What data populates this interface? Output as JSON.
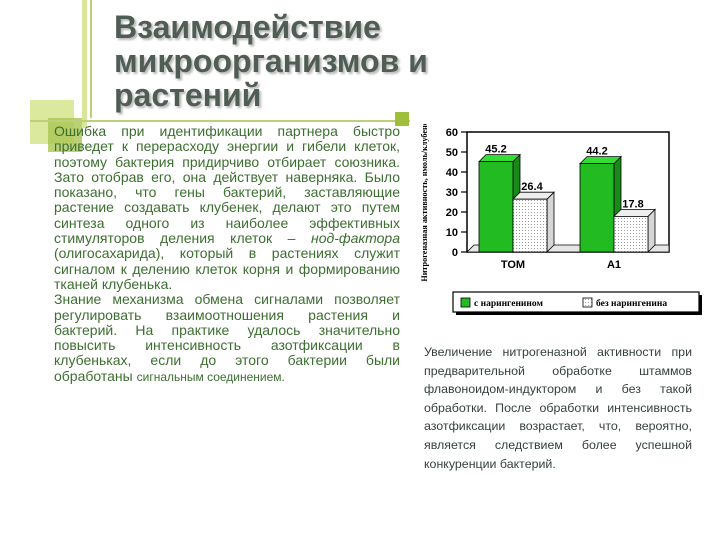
{
  "title": [
    "Взаимодействие",
    "микроорганизмов и",
    "растений"
  ],
  "paragraph1": {
    "part1": "Ошибка при идентификации партнера быстро приведет к перерасходу энергии и гибели клеток, поэтому бактерия придирчиво отбирает союзника. Зато отобрав его, она действует наверняка. Было показано, что гены бактерий, заставляющие растение создавать клубенек, делают это путем синтеза одного из наиболее эффективных стимуляторов деления клеток – ",
    "italic": "нод-фактора",
    "part2": " (олигосахарида), который в растениях служит сигналом к делению клеток корня и формированию тканей клубенька."
  },
  "paragraph2": {
    "main": "Знание механизма обмена сигналами позволяет регулировать взаимоотношения растения и бактерий. На практике удалось значительно повысить интенсивность азотфиксации в клубеньках, если до этого бактерии были обработаны ",
    "small": "сигнальным соединением."
  },
  "caption": "Увеличение нитрогеназной активности при предварительной обработке штаммов флавоноидом-индуктором и без такой обработки. После обработки интенсивность азотфиксации возрастает, что, вероятно, является следствием более успешной конкуренции бактерий.",
  "chart_data": {
    "type": "bar",
    "ylabel": "Нитрогеназная активность, нмоль/клубенек/час",
    "ylim": [
      0,
      60
    ],
    "yticks": [
      0,
      10,
      20,
      30,
      40,
      50,
      60
    ],
    "categories": [
      "ТОМ",
      "А1"
    ],
    "series": [
      {
        "name": "с нарингенином",
        "values": [
          45.2,
          44.2
        ],
        "color": "#22bb22"
      },
      {
        "name": "без нарингенина",
        "values": [
          26.4,
          17.8
        ],
        "color": "#ffffff"
      }
    ],
    "value_labels": [
      "45.2",
      "26.4",
      "44.2",
      "17.8"
    ],
    "legend_position": "bottom",
    "style": "3d"
  }
}
